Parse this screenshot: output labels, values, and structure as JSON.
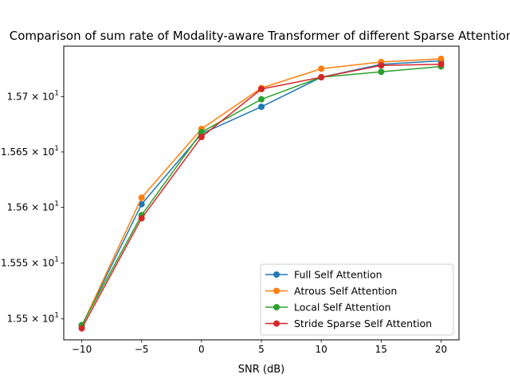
{
  "chart_data": {
    "type": "line",
    "title": "Comparison of sum rate of Modality-aware Transformer of different Sparse Attention",
    "xlabel": "SNR (dB)",
    "ylabel": "",
    "x": [
      -10,
      -5,
      0,
      5,
      10,
      15,
      20
    ],
    "x_ticks": [
      -10,
      -5,
      0,
      5,
      10,
      15,
      20
    ],
    "x_tick_labels": [
      "−10",
      "−5",
      "0",
      "5",
      "10",
      "15",
      "20"
    ],
    "xlim": [
      -11.5,
      21.5
    ],
    "y_ticks": [
      15.5,
      15.55,
      15.6,
      15.65,
      15.7
    ],
    "y_tick_labels": [
      {
        "prefix": "1.55",
        "exp": "1"
      },
      {
        "prefix": "1.555",
        "exp": "1"
      },
      {
        "prefix": "1.56",
        "exp": "1"
      },
      {
        "prefix": "1.565",
        "exp": "1"
      },
      {
        "prefix": "1.57",
        "exp": "1"
      }
    ],
    "ylim": [
      15.4813,
      15.7458
    ],
    "y_scale": "log",
    "grid": false,
    "legend_position": "lower-right",
    "series": [
      {
        "name": "Full Self Attention",
        "color": "#1f77b4",
        "values": [
          15.4935,
          15.6029,
          15.6664,
          15.6908,
          15.7176,
          15.7293,
          15.7325
        ]
      },
      {
        "name": "Atrous Self Attention",
        "color": "#ff7f0e",
        "values": [
          15.4935,
          15.6088,
          15.6708,
          15.7078,
          15.7253,
          15.7314,
          15.7343
        ]
      },
      {
        "name": "Local Self Attention",
        "color": "#2ca02c",
        "values": [
          15.4945,
          15.5931,
          15.6679,
          15.6976,
          15.7176,
          15.7225,
          15.7274
        ]
      },
      {
        "name": "Stride Sparse Self Attention",
        "color": "#d62728",
        "values": [
          15.4915,
          15.5902,
          15.6635,
          15.7069,
          15.7176,
          15.7283,
          15.7294
        ]
      }
    ]
  }
}
